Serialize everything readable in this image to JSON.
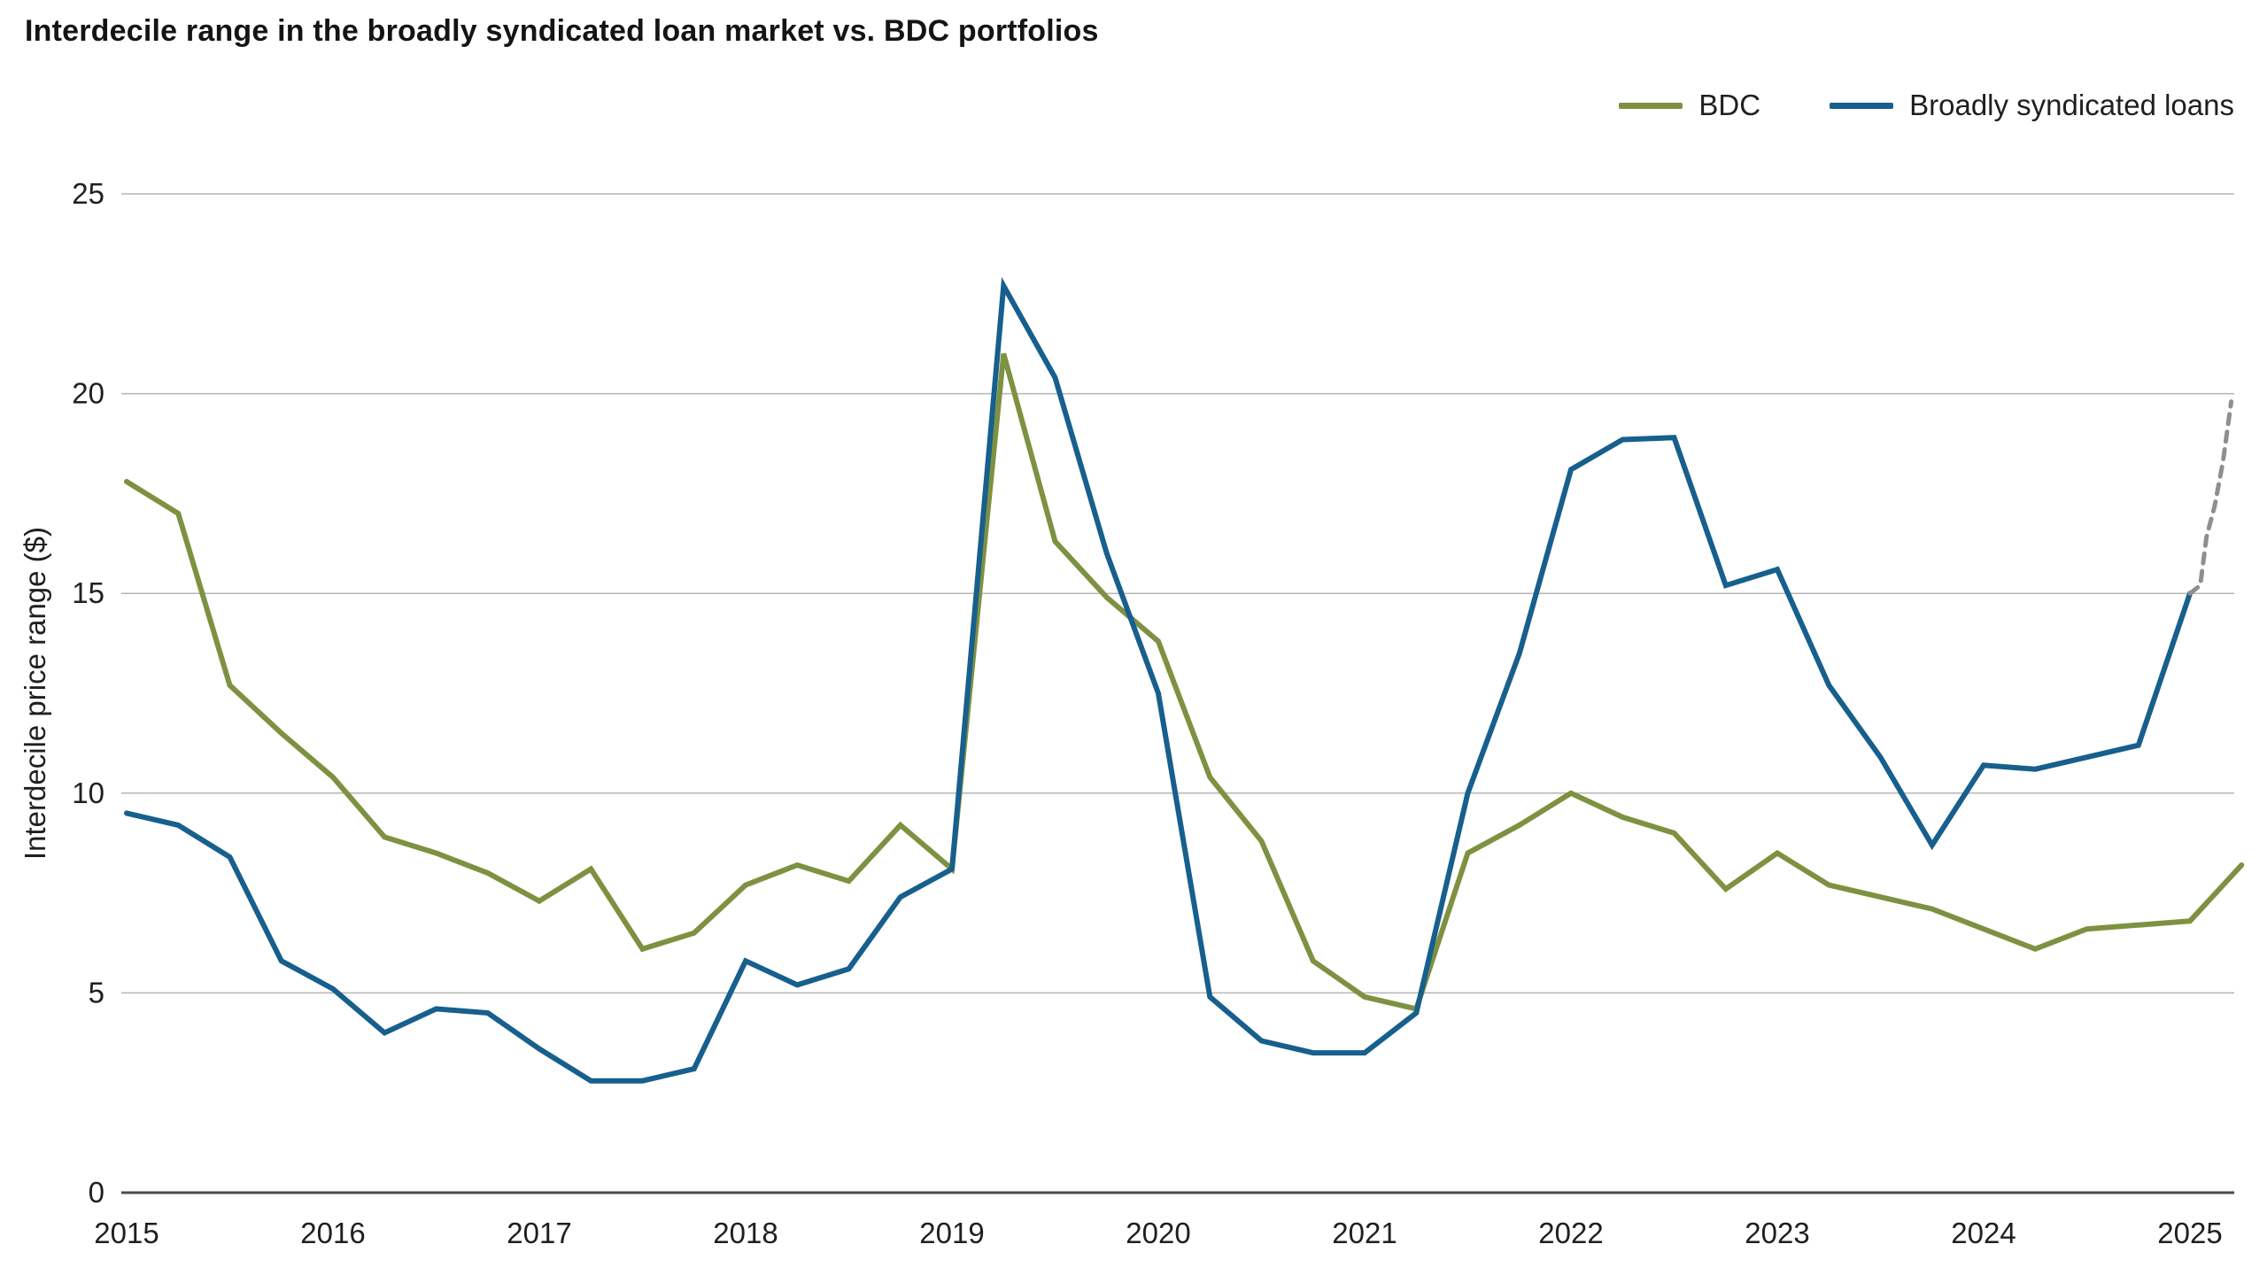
{
  "chart_data": {
    "type": "line",
    "title": "Interdecile range in the broadly syndicated loan market vs. BDC portfolios",
    "ylabel": "Interdecile price range ($)",
    "xlabel": "",
    "ylim": [
      0,
      25
    ],
    "yticks": [
      0,
      5,
      10,
      15,
      20,
      25
    ],
    "xticks": [
      2015,
      2016,
      2017,
      2018,
      2019,
      2020,
      2021,
      2022,
      2023,
      2024,
      2025
    ],
    "grid": "horizontal",
    "legend_position": "top-right",
    "series": [
      {
        "name": "BDC",
        "color": "#7e9141",
        "style": "solid",
        "x": [
          2015.0,
          2015.25,
          2015.5,
          2015.75,
          2016.0,
          2016.25,
          2016.5,
          2016.75,
          2017.0,
          2017.25,
          2017.5,
          2017.75,
          2018.0,
          2018.25,
          2018.5,
          2018.75,
          2019.0,
          2019.25,
          2019.5,
          2019.75,
          2020.0,
          2020.25,
          2020.5,
          2020.75,
          2021.0,
          2021.25,
          2021.5,
          2021.75,
          2022.0,
          2022.25,
          2022.5,
          2022.75,
          2023.0,
          2023.25,
          2023.5,
          2023.75,
          2024.0,
          2024.25,
          2024.5,
          2024.75,
          2025.0,
          2025.25
        ],
        "values": [
          17.8,
          17.0,
          12.7,
          11.5,
          10.4,
          8.9,
          8.5,
          8.0,
          7.3,
          8.1,
          6.1,
          6.5,
          7.7,
          8.2,
          7.8,
          9.2,
          8.1,
          21.0,
          16.3,
          14.9,
          13.8,
          10.4,
          8.8,
          5.8,
          4.9,
          4.6,
          8.5,
          9.2,
          10.0,
          9.4,
          9.0,
          7.6,
          8.5,
          7.7,
          7.4,
          7.1,
          6.6,
          6.1,
          6.6,
          6.7,
          6.8,
          8.2
        ]
      },
      {
        "name": "Broadly syndicated loans",
        "color": "#175f8d",
        "style": "solid",
        "x": [
          2015.0,
          2015.25,
          2015.5,
          2015.75,
          2016.0,
          2016.25,
          2016.5,
          2016.75,
          2017.0,
          2017.25,
          2017.5,
          2017.75,
          2018.0,
          2018.25,
          2018.5,
          2018.75,
          2019.0,
          2019.25,
          2019.5,
          2019.75,
          2020.0,
          2020.25,
          2020.5,
          2020.75,
          2021.0,
          2021.25,
          2021.5,
          2021.75,
          2022.0,
          2022.25,
          2022.5,
          2022.75,
          2023.0,
          2023.25,
          2023.5,
          2023.75,
          2024.0,
          2024.25,
          2024.5,
          2024.75,
          2025.0
        ],
        "values": [
          9.5,
          9.2,
          8.4,
          5.8,
          5.1,
          4.0,
          4.6,
          4.5,
          3.6,
          2.8,
          2.8,
          3.1,
          5.8,
          5.2,
          5.6,
          7.4,
          8.1,
          22.7,
          20.4,
          16.0,
          12.5,
          4.9,
          3.8,
          3.5,
          3.5,
          4.5,
          10.0,
          13.5,
          18.1,
          18.85,
          18.9,
          15.2,
          15.6,
          12.7,
          10.9,
          8.7,
          10.7,
          10.6,
          10.9,
          11.2,
          15.0
        ]
      },
      {
        "name": "Broadly syndicated loans projection",
        "color": "#8f8f8f",
        "style": "dashed",
        "x": [
          2025.0,
          2025.05,
          2025.08,
          2025.12,
          2025.16,
          2025.2
        ],
        "values": [
          15.0,
          15.2,
          16.4,
          17.2,
          18.3,
          19.8
        ]
      }
    ],
    "legend": [
      "BDC",
      "Broadly syndicated loans"
    ]
  },
  "palette": {
    "grid": "#b5b5b5",
    "axis": "#4d4d4d",
    "text": "#1f1f1f"
  }
}
